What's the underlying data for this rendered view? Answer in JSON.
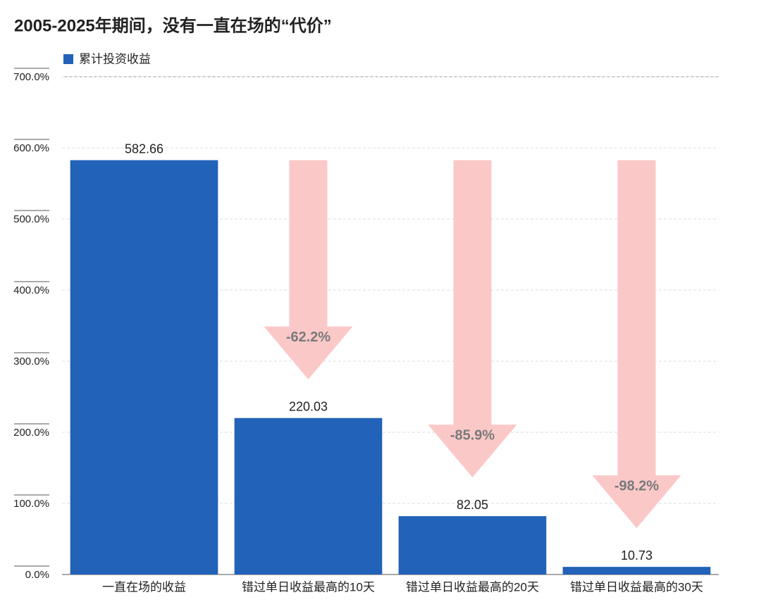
{
  "chart_data": {
    "type": "bar",
    "title": "2005-2025年期间，没有一直在场的“代价”",
    "categories": [
      "一直在场的收益",
      "错过单日收益最高的10天",
      "错过单日收益最高的20天",
      "错过单日收益最高的30天"
    ],
    "series": [
      {
        "name": "累计投资收益",
        "color": "#2262b8",
        "values": [
          582.66,
          220.03,
          82.05,
          10.73
        ]
      }
    ],
    "ylim": [
      0,
      700
    ],
    "yticks": [
      {
        "value": 0,
        "label": "0.0%"
      },
      {
        "value": 100,
        "label": "100.0%"
      },
      {
        "value": 200,
        "label": "200.0%"
      },
      {
        "value": 300,
        "label": "300.0%"
      },
      {
        "value": 400,
        "label": "400.0%"
      },
      {
        "value": 500,
        "label": "500.0%"
      },
      {
        "value": 600,
        "label": "600.0%"
      },
      {
        "value": 700,
        "label": "700.0%"
      }
    ],
    "grid": true,
    "annotations": [
      "-62.2%",
      "-85.9%",
      "-98.2%"
    ],
    "annotation_color": "#fbc8c8"
  }
}
